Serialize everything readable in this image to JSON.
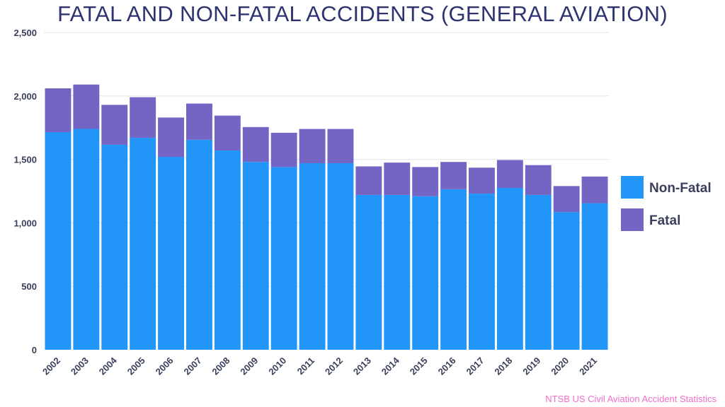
{
  "title": "FATAL AND NON-FATAL ACCIDENTS (GENERAL AVIATION)",
  "source": "NTSB US Civil Aviation Accident Statistics",
  "colors": {
    "non_fatal": "#2196f8",
    "fatal": "#7465c4",
    "grid": "#e6e6e6"
  },
  "chart_data": {
    "type": "bar",
    "stacked": true,
    "categories": [
      "2002",
      "2003",
      "2004",
      "2005",
      "2006",
      "2007",
      "2008",
      "2009",
      "2010",
      "2011",
      "2012",
      "2013",
      "2014",
      "2015",
      "2016",
      "2017",
      "2018",
      "2019",
      "2020",
      "2021"
    ],
    "series": [
      {
        "name": "Non-Fatal",
        "color": "#2196f8",
        "values": [
          1715,
          1740,
          1615,
          1670,
          1520,
          1655,
          1570,
          1480,
          1440,
          1470,
          1470,
          1220,
          1220,
          1210,
          1265,
          1230,
          1275,
          1220,
          1085,
          1155
        ]
      },
      {
        "name": "Fatal",
        "color": "#7465c4",
        "values": [
          345,
          350,
          315,
          320,
          310,
          285,
          275,
          275,
          270,
          270,
          270,
          225,
          255,
          230,
          215,
          205,
          220,
          235,
          205,
          210
        ]
      }
    ],
    "y_ticks": [
      "0",
      "500",
      "1,000",
      "1,500",
      "2,000",
      "2,500"
    ],
    "ylim": [
      0,
      2500
    ],
    "grid": true,
    "legend_position": "right",
    "xlabel": "",
    "ylabel": ""
  }
}
